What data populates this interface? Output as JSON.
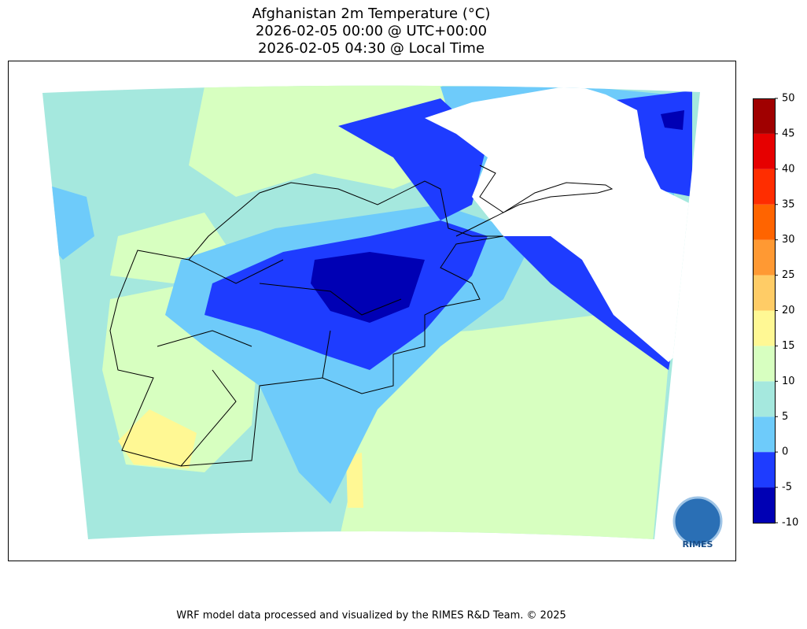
{
  "title": [
    "Afghanistan 2m Temperature (°C)",
    "2026-02-05 00:00 @ UTC+00:00",
    "2026-02-05 04:30 @ Local Time"
  ],
  "colorbar": {
    "levels": [
      -10,
      -5,
      0,
      5,
      10,
      15,
      20,
      25,
      30,
      35,
      40,
      45,
      50
    ],
    "lim": [
      -10,
      50
    ],
    "colors": [
      "#0000b4",
      "#1e3cff",
      "#6ecbfa",
      "#a5e8de",
      "#d7ffc0",
      "#fff894",
      "#ffcc66",
      "#ff9933",
      "#ff6400",
      "#ff2d00",
      "#e60000",
      "#a00000"
    ]
  },
  "logo": "RIMES",
  "footer": "WRF model data processed and visualized by the RIMES R&D Team. © 2025"
}
